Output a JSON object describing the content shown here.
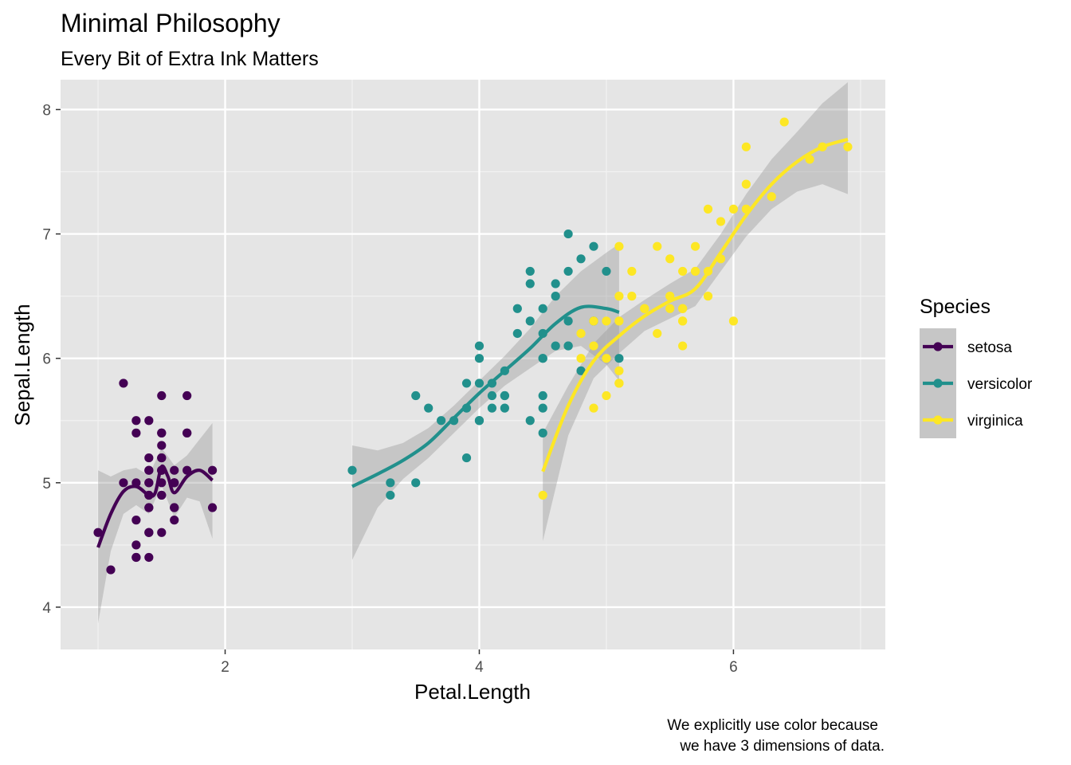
{
  "chart_data": {
    "type": "scatter",
    "title": "Minimal Philosophy",
    "subtitle": "Every Bit of Extra Ink Matters",
    "xlabel": "Petal.Length",
    "ylabel": "Sepal.Length",
    "caption_lines": [
      "We explicitly use color because",
      "we have 3 dimensions of data."
    ],
    "xlim": [
      0.705,
      7.195
    ],
    "ylim": [
      3.66,
      8.24
    ],
    "x_ticks": [
      2,
      4,
      6
    ],
    "x_tick_labels": [
      "2",
      "4",
      "6"
    ],
    "y_ticks": [
      4,
      5,
      6,
      7,
      8
    ],
    "y_tick_labels": [
      "4",
      "5",
      "6",
      "7",
      "8"
    ],
    "grid": true,
    "panel_background": "#e5e5e5",
    "legend": {
      "title": "Species",
      "position": "right"
    },
    "series": [
      {
        "name": "setosa",
        "color": "#440154",
        "points": [
          [
            1.4,
            5.1
          ],
          [
            1.4,
            4.9
          ],
          [
            1.3,
            4.7
          ],
          [
            1.5,
            4.6
          ],
          [
            1.4,
            5.0
          ],
          [
            1.7,
            5.4
          ],
          [
            1.4,
            4.6
          ],
          [
            1.5,
            5.0
          ],
          [
            1.4,
            4.4
          ],
          [
            1.5,
            4.9
          ],
          [
            1.5,
            5.4
          ],
          [
            1.6,
            4.8
          ],
          [
            1.4,
            4.8
          ],
          [
            1.1,
            4.3
          ],
          [
            1.2,
            5.8
          ],
          [
            1.5,
            5.7
          ],
          [
            1.3,
            5.4
          ],
          [
            1.4,
            5.1
          ],
          [
            1.7,
            5.7
          ],
          [
            1.5,
            5.1
          ],
          [
            1.7,
            5.4
          ],
          [
            1.5,
            5.1
          ],
          [
            1.0,
            4.6
          ],
          [
            1.7,
            5.1
          ],
          [
            1.9,
            4.8
          ],
          [
            1.6,
            5.0
          ],
          [
            1.6,
            5.0
          ],
          [
            1.5,
            5.2
          ],
          [
            1.4,
            5.2
          ],
          [
            1.6,
            4.7
          ],
          [
            1.6,
            4.8
          ],
          [
            1.5,
            5.4
          ],
          [
            1.5,
            5.2
          ],
          [
            1.4,
            5.5
          ],
          [
            1.5,
            4.9
          ],
          [
            1.2,
            5.0
          ],
          [
            1.3,
            5.5
          ],
          [
            1.4,
            4.9
          ],
          [
            1.3,
            4.4
          ],
          [
            1.5,
            5.1
          ],
          [
            1.3,
            5.0
          ],
          [
            1.3,
            4.5
          ],
          [
            1.3,
            4.4
          ],
          [
            1.6,
            5.0
          ],
          [
            1.9,
            5.1
          ],
          [
            1.4,
            4.8
          ],
          [
            1.6,
            5.1
          ],
          [
            1.4,
            4.6
          ],
          [
            1.5,
            5.3
          ],
          [
            1.4,
            5.0
          ]
        ],
        "smooth": [
          [
            1.0,
            4.48
          ],
          [
            1.1,
            4.75
          ],
          [
            1.2,
            4.93
          ],
          [
            1.3,
            4.97
          ],
          [
            1.4,
            4.9
          ],
          [
            1.45,
            4.92
          ],
          [
            1.5,
            5.13
          ],
          [
            1.55,
            5.05
          ],
          [
            1.6,
            4.92
          ],
          [
            1.7,
            5.05
          ],
          [
            1.8,
            5.1
          ],
          [
            1.9,
            5.02
          ]
        ],
        "band_upper": [
          [
            1.0,
            5.1
          ],
          [
            1.1,
            5.05
          ],
          [
            1.2,
            5.1
          ],
          [
            1.3,
            5.12
          ],
          [
            1.4,
            5.06
          ],
          [
            1.5,
            5.28
          ],
          [
            1.6,
            5.14
          ],
          [
            1.7,
            5.22
          ],
          [
            1.8,
            5.35
          ],
          [
            1.9,
            5.48
          ]
        ],
        "band_lower": [
          [
            1.0,
            3.87
          ],
          [
            1.1,
            4.45
          ],
          [
            1.2,
            4.75
          ],
          [
            1.3,
            4.82
          ],
          [
            1.4,
            4.75
          ],
          [
            1.5,
            4.98
          ],
          [
            1.6,
            4.72
          ],
          [
            1.7,
            4.88
          ],
          [
            1.8,
            4.85
          ],
          [
            1.9,
            4.55
          ]
        ]
      },
      {
        "name": "versicolor",
        "color": "#21908c",
        "points": [
          [
            4.7,
            7.0
          ],
          [
            4.5,
            6.4
          ],
          [
            4.9,
            6.9
          ],
          [
            4.0,
            5.5
          ],
          [
            4.6,
            6.5
          ],
          [
            4.5,
            5.7
          ],
          [
            4.7,
            6.3
          ],
          [
            3.3,
            4.9
          ],
          [
            4.6,
            6.6
          ],
          [
            3.9,
            5.2
          ],
          [
            3.5,
            5.0
          ],
          [
            4.2,
            5.9
          ],
          [
            4.0,
            6.0
          ],
          [
            4.7,
            6.1
          ],
          [
            3.6,
            5.6
          ],
          [
            4.4,
            6.7
          ],
          [
            4.5,
            5.6
          ],
          [
            4.1,
            5.8
          ],
          [
            4.5,
            6.2
          ],
          [
            3.9,
            5.6
          ],
          [
            4.8,
            5.9
          ],
          [
            4.0,
            6.1
          ],
          [
            4.9,
            6.3
          ],
          [
            4.7,
            6.1
          ],
          [
            4.3,
            6.4
          ],
          [
            4.4,
            6.6
          ],
          [
            4.8,
            6.8
          ],
          [
            5.0,
            6.7
          ],
          [
            4.5,
            6.0
          ],
          [
            3.5,
            5.7
          ],
          [
            3.8,
            5.5
          ],
          [
            3.7,
            5.5
          ],
          [
            3.9,
            5.8
          ],
          [
            5.1,
            6.0
          ],
          [
            4.5,
            5.4
          ],
          [
            4.5,
            6.0
          ],
          [
            4.7,
            6.7
          ],
          [
            4.4,
            6.3
          ],
          [
            4.1,
            5.6
          ],
          [
            4.0,
            5.5
          ],
          [
            4.4,
            5.5
          ],
          [
            4.6,
            6.1
          ],
          [
            4.0,
            5.8
          ],
          [
            3.3,
            5.0
          ],
          [
            4.2,
            5.6
          ],
          [
            4.2,
            5.7
          ],
          [
            4.2,
            5.7
          ],
          [
            4.3,
            6.2
          ],
          [
            3.0,
            5.1
          ],
          [
            4.1,
            5.7
          ]
        ],
        "smooth": [
          [
            3.0,
            4.97
          ],
          [
            3.2,
            5.07
          ],
          [
            3.4,
            5.18
          ],
          [
            3.6,
            5.32
          ],
          [
            3.8,
            5.52
          ],
          [
            4.0,
            5.72
          ],
          [
            4.2,
            5.9
          ],
          [
            4.4,
            6.08
          ],
          [
            4.6,
            6.28
          ],
          [
            4.8,
            6.41
          ],
          [
            5.0,
            6.4
          ],
          [
            5.1,
            6.37
          ]
        ],
        "band_upper": [
          [
            3.0,
            5.3
          ],
          [
            3.2,
            5.26
          ],
          [
            3.4,
            5.32
          ],
          [
            3.6,
            5.44
          ],
          [
            3.8,
            5.62
          ],
          [
            4.0,
            5.82
          ],
          [
            4.2,
            6.02
          ],
          [
            4.4,
            6.24
          ],
          [
            4.6,
            6.5
          ],
          [
            4.8,
            6.7
          ],
          [
            5.0,
            6.85
          ],
          [
            5.1,
            6.92
          ]
        ],
        "band_lower": [
          [
            3.0,
            4.38
          ],
          [
            3.2,
            4.8
          ],
          [
            3.4,
            5.03
          ],
          [
            3.6,
            5.2
          ],
          [
            3.8,
            5.4
          ],
          [
            4.0,
            5.6
          ],
          [
            4.2,
            5.78
          ],
          [
            4.4,
            5.92
          ],
          [
            4.6,
            6.06
          ],
          [
            4.8,
            6.1
          ],
          [
            5.0,
            5.95
          ],
          [
            5.1,
            5.82
          ]
        ]
      },
      {
        "name": "virginica",
        "color": "#fde725",
        "points": [
          [
            6.0,
            6.3
          ],
          [
            5.1,
            5.8
          ],
          [
            5.9,
            7.1
          ],
          [
            5.6,
            6.3
          ],
          [
            5.8,
            6.5
          ],
          [
            6.6,
            7.6
          ],
          [
            4.5,
            4.9
          ],
          [
            6.3,
            7.3
          ],
          [
            5.8,
            6.7
          ],
          [
            6.1,
            7.2
          ],
          [
            5.1,
            6.5
          ],
          [
            5.3,
            6.4
          ],
          [
            5.5,
            6.8
          ],
          [
            5.0,
            5.7
          ],
          [
            5.1,
            5.8
          ],
          [
            5.3,
            6.4
          ],
          [
            5.5,
            6.5
          ],
          [
            6.7,
            7.7
          ],
          [
            6.9,
            7.7
          ],
          [
            5.0,
            6.0
          ],
          [
            5.7,
            6.9
          ],
          [
            4.9,
            5.6
          ],
          [
            6.7,
            7.7
          ],
          [
            4.9,
            6.3
          ],
          [
            5.7,
            6.7
          ],
          [
            6.0,
            7.2
          ],
          [
            4.8,
            6.2
          ],
          [
            4.9,
            6.1
          ],
          [
            5.6,
            6.4
          ],
          [
            5.8,
            7.2
          ],
          [
            6.1,
            7.4
          ],
          [
            6.4,
            7.9
          ],
          [
            5.6,
            6.4
          ],
          [
            5.1,
            6.3
          ],
          [
            5.6,
            6.1
          ],
          [
            6.1,
            7.7
          ],
          [
            5.6,
            6.3
          ],
          [
            5.5,
            6.4
          ],
          [
            4.8,
            6.0
          ],
          [
            5.4,
            6.9
          ],
          [
            5.6,
            6.7
          ],
          [
            5.1,
            6.9
          ],
          [
            5.1,
            5.8
          ],
          [
            5.9,
            6.8
          ],
          [
            5.7,
            6.7
          ],
          [
            5.2,
            6.7
          ],
          [
            5.0,
            6.3
          ],
          [
            5.2,
            6.5
          ],
          [
            5.4,
            6.2
          ],
          [
            5.1,
            5.9
          ]
        ],
        "smooth": [
          [
            4.5,
            5.09
          ],
          [
            4.7,
            5.62
          ],
          [
            4.9,
            5.98
          ],
          [
            5.1,
            6.18
          ],
          [
            5.3,
            6.34
          ],
          [
            5.5,
            6.46
          ],
          [
            5.7,
            6.56
          ],
          [
            5.9,
            6.85
          ],
          [
            6.1,
            7.15
          ],
          [
            6.3,
            7.4
          ],
          [
            6.5,
            7.58
          ],
          [
            6.7,
            7.7
          ],
          [
            6.9,
            7.76
          ]
        ],
        "band_upper": [
          [
            4.5,
            5.4
          ],
          [
            4.7,
            5.78
          ],
          [
            4.9,
            6.12
          ],
          [
            5.1,
            6.33
          ],
          [
            5.3,
            6.47
          ],
          [
            5.5,
            6.6
          ],
          [
            5.7,
            6.72
          ],
          [
            5.9,
            7.0
          ],
          [
            6.1,
            7.32
          ],
          [
            6.3,
            7.6
          ],
          [
            6.5,
            7.82
          ],
          [
            6.7,
            8.05
          ],
          [
            6.9,
            8.22
          ]
        ],
        "band_lower": [
          [
            4.5,
            4.53
          ],
          [
            4.7,
            5.38
          ],
          [
            4.9,
            5.84
          ],
          [
            5.1,
            6.04
          ],
          [
            5.3,
            6.22
          ],
          [
            5.5,
            6.32
          ],
          [
            5.7,
            6.42
          ],
          [
            5.9,
            6.7
          ],
          [
            6.1,
            6.98
          ],
          [
            6.3,
            7.2
          ],
          [
            6.5,
            7.34
          ],
          [
            6.7,
            7.4
          ],
          [
            6.9,
            7.32
          ]
        ]
      }
    ]
  }
}
